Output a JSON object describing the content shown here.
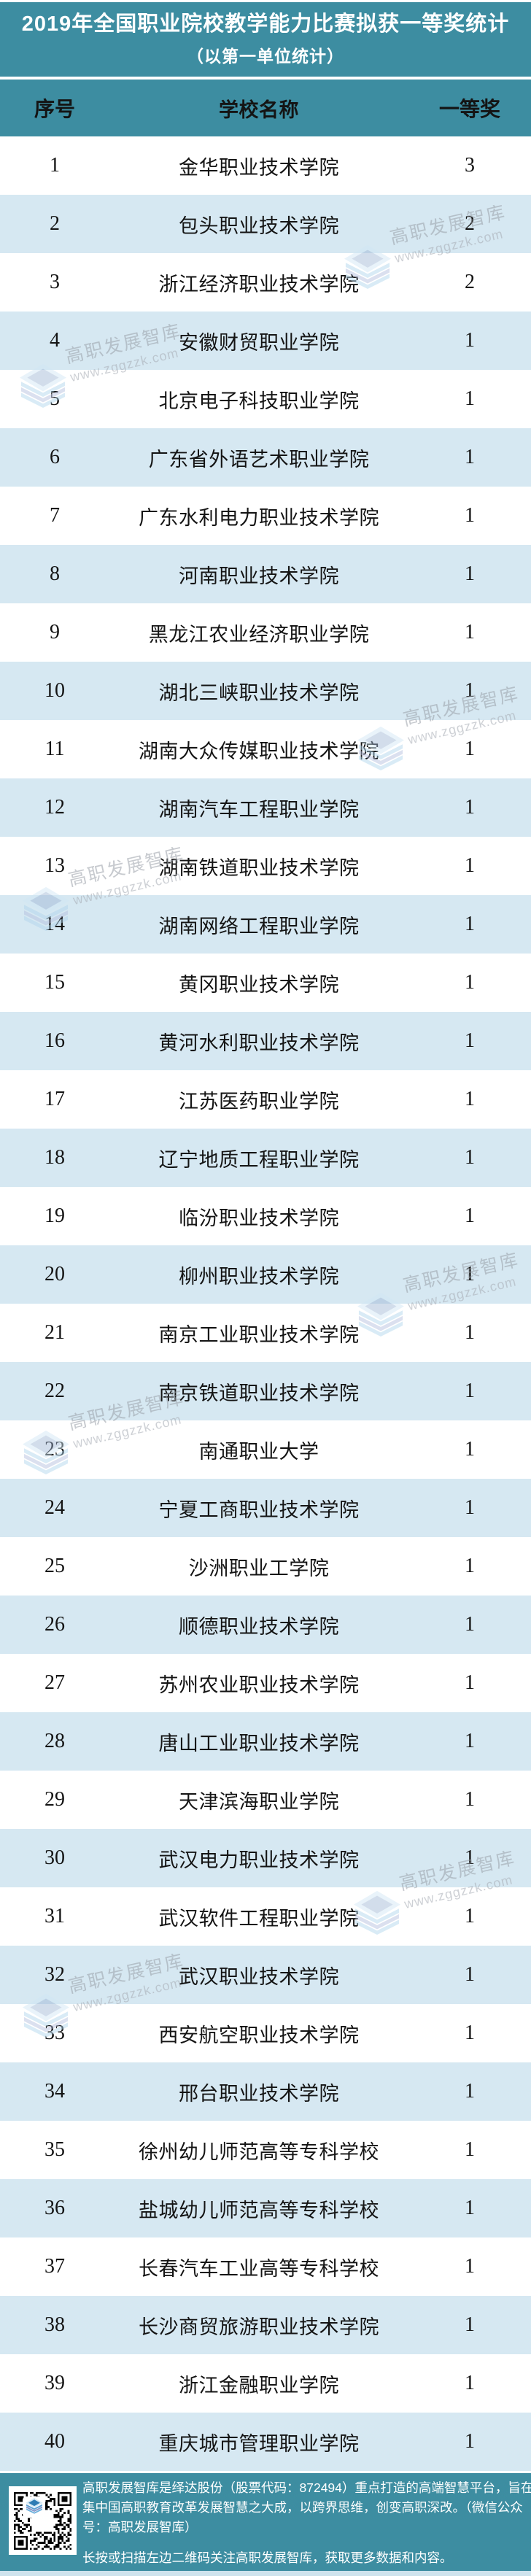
{
  "chart_data": {
    "type": "table",
    "title": "2019年全国职业院校教学能力比赛拟获一等奖统计",
    "subtitle": "（以第一单位统计）",
    "columns": [
      "序号",
      "学校名称",
      "一等奖"
    ],
    "rows": [
      [
        "1",
        "金华职业技术学院",
        "3"
      ],
      [
        "2",
        "包头职业技术学院",
        "2"
      ],
      [
        "3",
        "浙江经济职业技术学院",
        "2"
      ],
      [
        "4",
        "安徽财贸职业学院",
        "1"
      ],
      [
        "5",
        "北京电子科技职业学院",
        "1"
      ],
      [
        "6",
        "广东省外语艺术职业学院",
        "1"
      ],
      [
        "7",
        "广东水利电力职业技术学院",
        "1"
      ],
      [
        "8",
        "河南职业技术学院",
        "1"
      ],
      [
        "9",
        "黑龙江农业经济职业学院",
        "1"
      ],
      [
        "10",
        "湖北三峡职业技术学院",
        "1"
      ],
      [
        "11",
        "湖南大众传媒职业技术学院",
        "1"
      ],
      [
        "12",
        "湖南汽车工程职业学院",
        "1"
      ],
      [
        "13",
        "湖南铁道职业技术学院",
        "1"
      ],
      [
        "14",
        "湖南网络工程职业学院",
        "1"
      ],
      [
        "15",
        "黄冈职业技术学院",
        "1"
      ],
      [
        "16",
        "黄河水利职业技术学院",
        "1"
      ],
      [
        "17",
        "江苏医药职业学院",
        "1"
      ],
      [
        "18",
        "辽宁地质工程职业学院",
        "1"
      ],
      [
        "19",
        "临汾职业技术学院",
        "1"
      ],
      [
        "20",
        "柳州职业技术学院",
        "1"
      ],
      [
        "21",
        "南京工业职业技术学院",
        "1"
      ],
      [
        "22",
        "南京铁道职业技术学院",
        "1"
      ],
      [
        "23",
        "南通职业大学",
        "1"
      ],
      [
        "24",
        "宁夏工商职业技术学院",
        "1"
      ],
      [
        "25",
        "沙洲职业工学院",
        "1"
      ],
      [
        "26",
        "顺德职业技术学院",
        "1"
      ],
      [
        "27",
        "苏州农业职业技术学院",
        "1"
      ],
      [
        "28",
        "唐山工业职业技术学院",
        "1"
      ],
      [
        "29",
        "天津滨海职业学院",
        "1"
      ],
      [
        "30",
        "武汉电力职业技术学院",
        "1"
      ],
      [
        "31",
        "武汉软件工程职业学院",
        "1"
      ],
      [
        "32",
        "武汉职业技术学院",
        "1"
      ],
      [
        "33",
        "西安航空职业技术学院",
        "1"
      ],
      [
        "34",
        "邢台职业技术学院",
        "1"
      ],
      [
        "35",
        "徐州幼儿师范高等专科学校",
        "1"
      ],
      [
        "36",
        "盐城幼儿师范高等专科学校",
        "1"
      ],
      [
        "37",
        "长春汽车工业高等专科学校",
        "1"
      ],
      [
        "38",
        "长沙商贸旅游职业技术学院",
        "1"
      ],
      [
        "39",
        "浙江金融职业学院",
        "1"
      ],
      [
        "40",
        "重庆城市管理职业学院",
        "1"
      ]
    ]
  },
  "watermark": {
    "brand": "高职发展智库",
    "url": "www.zggzzk.com"
  },
  "footer": {
    "about_lines": [
      "高职发展智库是绎达股份（股票代码：872494）重点打造的高端智慧平台，旨在",
      "集中国高职教育改革发展智慧之大成，以跨界思维，创变高职深改。（微信公众",
      "号：高职发展智库）"
    ],
    "note": "长按或扫描左边二维码关注高职发展智库，获取更多数据和内容。"
  },
  "colors": {
    "teal": "#3D8DA1",
    "row_alt": "#D6E8F2",
    "bottom_strip": "#CFE3ED"
  }
}
